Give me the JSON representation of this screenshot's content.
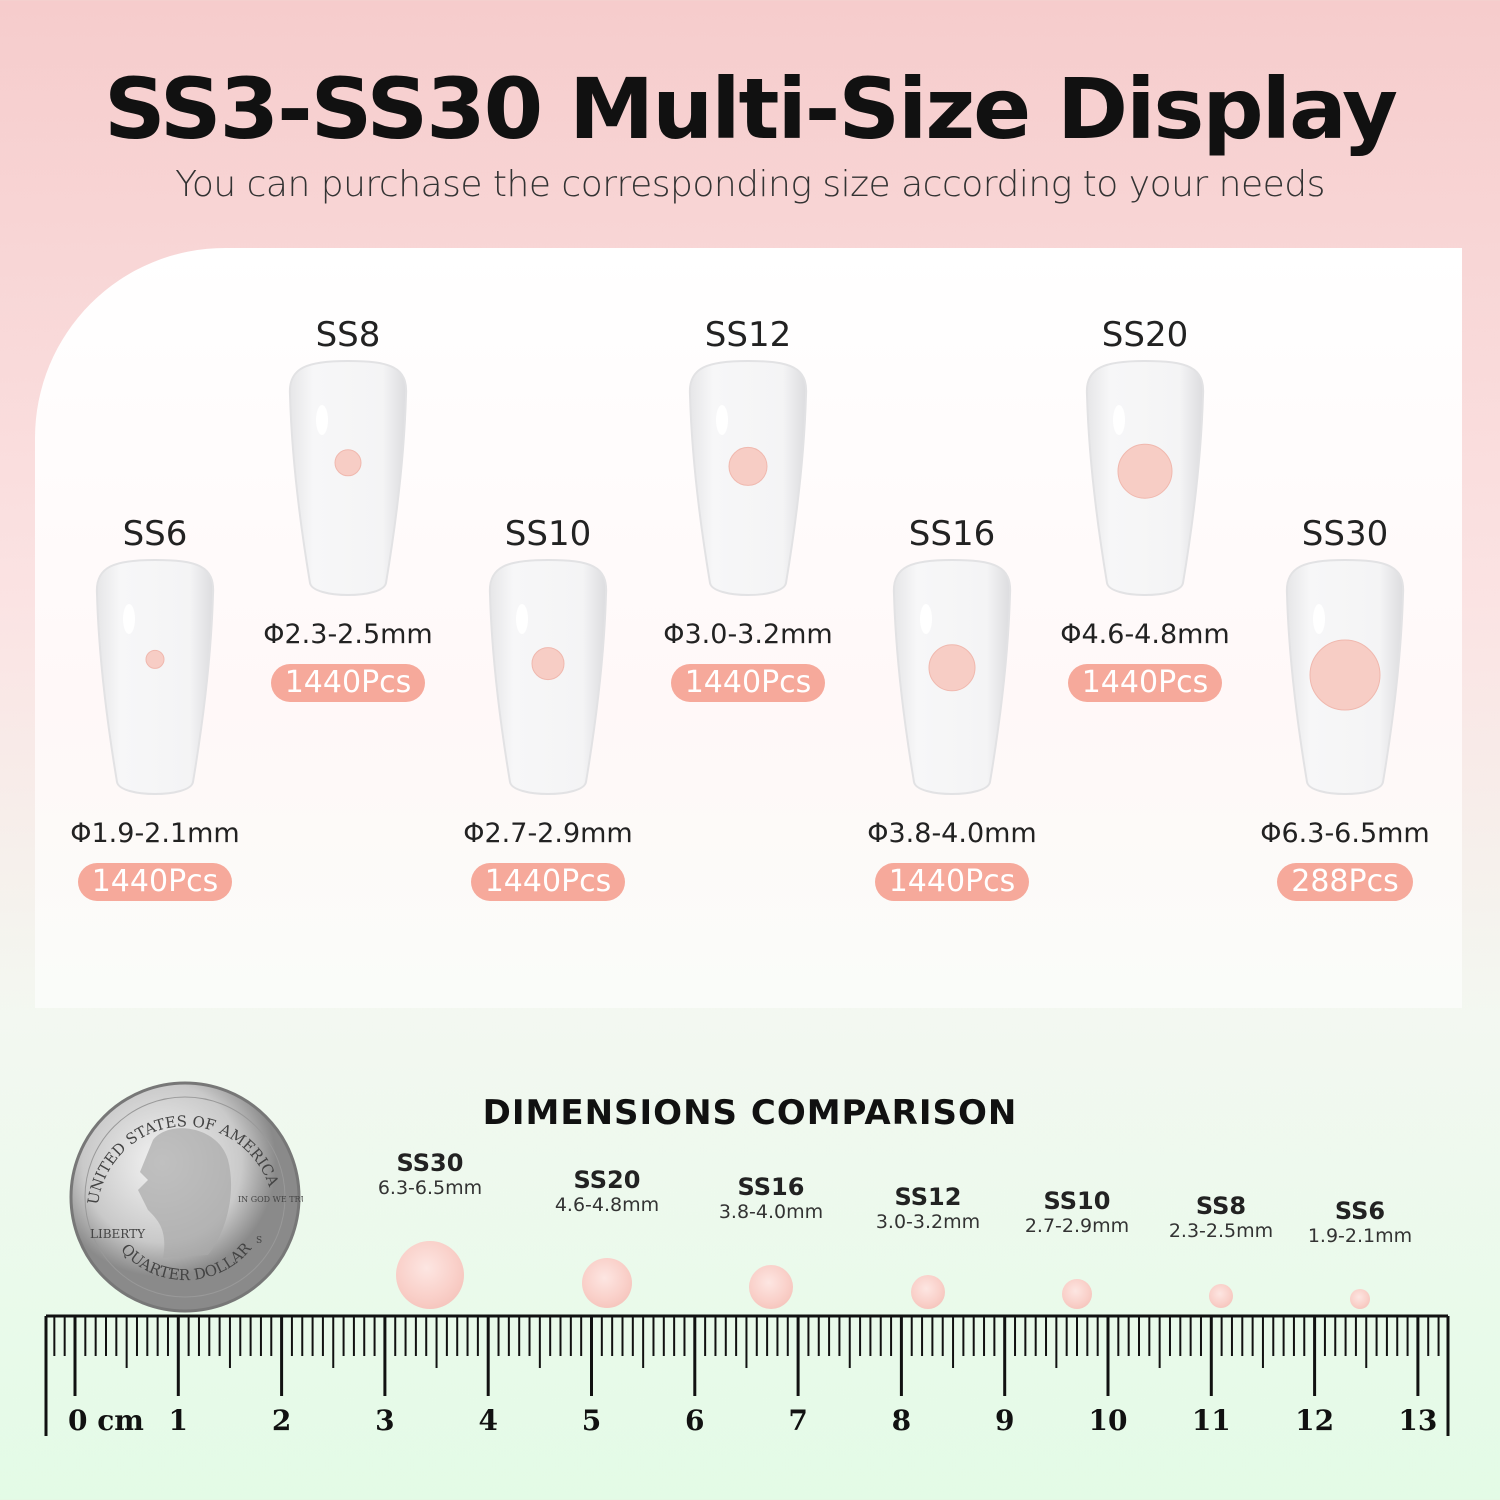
{
  "header": {
    "title": "SS3-SS30 Multi-Size Display",
    "subtitle": "You can purchase the corresponding size according to your needs"
  },
  "colors": {
    "badge": "#f6a99b",
    "gem": "#f9cfc8"
  },
  "items": [
    {
      "size": "SS6",
      "diameter": "Φ1.9-2.1mm",
      "count": "1440Pcs",
      "row": "low"
    },
    {
      "size": "SS8",
      "diameter": "Φ2.3-2.5mm",
      "count": "1440Pcs",
      "row": "high"
    },
    {
      "size": "SS10",
      "diameter": "Φ2.7-2.9mm",
      "count": "1440Pcs",
      "row": "low"
    },
    {
      "size": "SS12",
      "diameter": "Φ3.0-3.2mm",
      "count": "1440Pcs",
      "row": "high"
    },
    {
      "size": "SS16",
      "diameter": "Φ3.8-4.0mm",
      "count": "1440Pcs",
      "row": "low"
    },
    {
      "size": "SS20",
      "diameter": "Φ4.6-4.8mm",
      "count": "1440Pcs",
      "row": "high"
    },
    {
      "size": "SS30",
      "diameter": "Φ6.3-6.5mm",
      "count": "288Pcs",
      "row": "low"
    }
  ],
  "comparison": {
    "title": "DIMENSIONS COMPARISON",
    "items": [
      {
        "size": "SS30",
        "mm": "6.3-6.5mm"
      },
      {
        "size": "SS20",
        "mm": "4.6-4.8mm"
      },
      {
        "size": "SS16",
        "mm": "3.8-4.0mm"
      },
      {
        "size": "SS12",
        "mm": "3.0-3.2mm"
      },
      {
        "size": "SS10",
        "mm": "2.7-2.9mm"
      },
      {
        "size": "SS8",
        "mm": "2.3-2.5mm"
      },
      {
        "size": "SS6",
        "mm": "1.9-2.1mm"
      }
    ],
    "coin": {
      "top": "UNITED STATES OF AMERICA",
      "bottom": "QUARTER DOLLAR",
      "left": "LIBERTY",
      "motto": "IN GOD WE TRUST",
      "mint": "S"
    },
    "ruler": {
      "unit": "cm",
      "labels": [
        "0 cm",
        "1",
        "2",
        "3",
        "4",
        "5",
        "6",
        "7",
        "8",
        "9",
        "10",
        "11",
        "12",
        "13"
      ]
    }
  }
}
